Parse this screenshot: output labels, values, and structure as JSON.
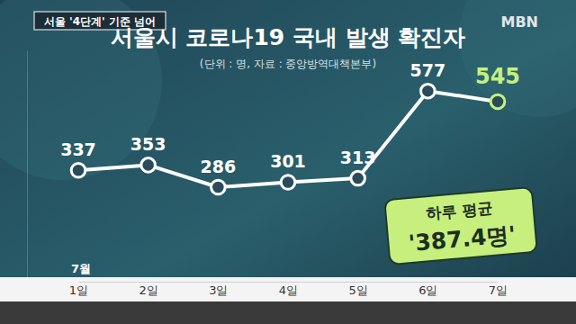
{
  "chart_data": {
    "type": "line",
    "title": "서울시 코로나19 국내 발생 확진자",
    "subtitle": "(단위 : 명, 자료 : 중앙방역대책본부)",
    "tag": "서울 '4단계' 기준 넘어",
    "logo": "MBN",
    "annotations": [
      "하루 평균",
      "'387.4명'"
    ],
    "xlabel": "7월",
    "categories": [
      "1일",
      "2일",
      "3일",
      "4일",
      "5일",
      "6일",
      "7일"
    ],
    "values": [
      337,
      353,
      286,
      301,
      313,
      577,
      545
    ],
    "color": "#ffffff",
    "colors": [
      "#ffffff",
      "#ffffff",
      "#ffffff",
      "#ffffff",
      "#ffffff",
      "#ffffff",
      "#c6ef7e"
    ],
    "marker": "circle",
    "ylim": [
      0,
      700
    ],
    "data_labels": true,
    "tick_labels": "x",
    "grid": false
  }
}
